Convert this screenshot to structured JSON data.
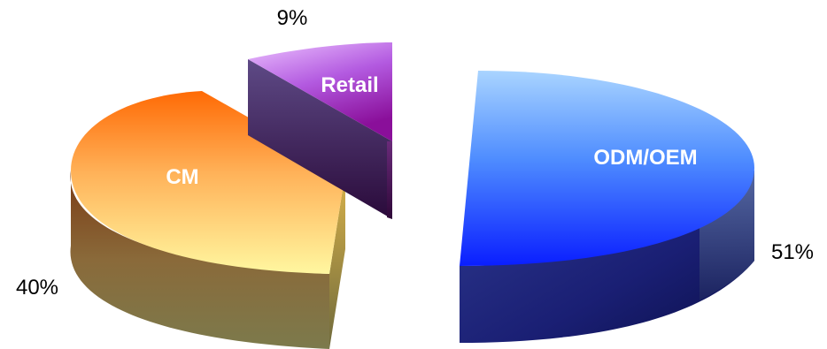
{
  "chart_data": {
    "type": "pie",
    "style": "3d-exploded",
    "title": "",
    "slices": [
      {
        "label": "ODM/OEM",
        "value": 51,
        "value_label": "51%",
        "color": "#1a3cff"
      },
      {
        "label": "CM",
        "value": 40,
        "value_label": "40%",
        "color": "#ff8a1a"
      },
      {
        "label": "Retail",
        "value": 9,
        "value_label": "9%",
        "color": "#b04ccc"
      }
    ],
    "legend": "none"
  }
}
